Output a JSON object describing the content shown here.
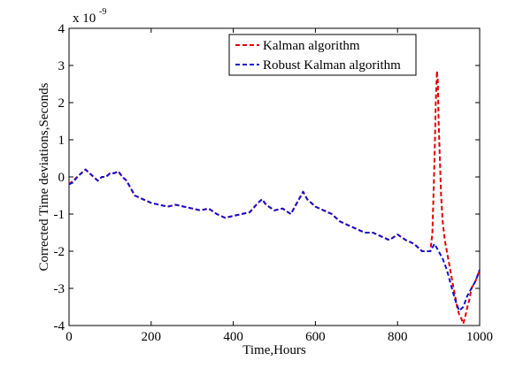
{
  "chart_data": {
    "type": "line",
    "xlabel": "Time,Hours",
    "ylabel": "Corrected Time deviations,Seconds",
    "y_multiplier_label": "x 10",
    "y_multiplier_exponent": "-9",
    "xlim": [
      0,
      1000
    ],
    "ylim": [
      -4,
      4
    ],
    "x_ticks": [
      0,
      200,
      400,
      600,
      800,
      1000
    ],
    "y_ticks": [
      -4,
      -3,
      -2,
      -1,
      0,
      1,
      2,
      3,
      4
    ],
    "x_tick_labels": [
      "0",
      "200",
      "400",
      "600",
      "800",
      "1000"
    ],
    "y_tick_labels": [
      "-4",
      "-3",
      "-2",
      "-1",
      "0",
      "1",
      "2",
      "3",
      "4"
    ],
    "grid": false,
    "legend_position": "top-right",
    "series": [
      {
        "name": "Kalman algorithm",
        "color": "#e00000",
        "line_style": "dashed",
        "x": [
          0,
          10,
          20,
          30,
          40,
          50,
          60,
          70,
          80,
          90,
          100,
          110,
          120,
          130,
          140,
          150,
          160,
          170,
          180,
          190,
          200,
          220,
          240,
          260,
          280,
          300,
          320,
          340,
          360,
          380,
          400,
          420,
          440,
          460,
          470,
          480,
          500,
          520,
          540,
          560,
          570,
          580,
          600,
          620,
          640,
          660,
          680,
          700,
          720,
          740,
          760,
          780,
          800,
          820,
          840,
          860,
          880,
          885,
          890,
          893,
          896,
          898,
          900,
          903,
          906,
          910,
          915,
          920,
          925,
          930,
          935,
          940,
          945,
          950,
          955,
          960,
          965,
          970,
          975,
          980,
          990,
          1000
        ],
        "y": [
          -0.2,
          -0.1,
          0.0,
          0.1,
          0.2,
          0.1,
          0.0,
          -0.1,
          0.0,
          0.0,
          0.1,
          0.1,
          0.15,
          0.0,
          -0.1,
          -0.3,
          -0.5,
          -0.55,
          -0.6,
          -0.65,
          -0.7,
          -0.75,
          -0.8,
          -0.75,
          -0.8,
          -0.85,
          -0.9,
          -0.85,
          -1.0,
          -1.1,
          -1.05,
          -1.0,
          -0.95,
          -0.7,
          -0.6,
          -0.75,
          -0.9,
          -0.85,
          -1.0,
          -0.6,
          -0.4,
          -0.6,
          -0.8,
          -0.9,
          -1.0,
          -1.2,
          -1.3,
          -1.4,
          -1.5,
          -1.5,
          -1.6,
          -1.7,
          -1.55,
          -1.7,
          -1.8,
          -2.0,
          -2.0,
          -1.5,
          0.5,
          2.0,
          2.85,
          2.6,
          1.5,
          0.5,
          -0.5,
          -1.2,
          -1.7,
          -2.0,
          -2.3,
          -2.6,
          -2.9,
          -3.2,
          -3.5,
          -3.7,
          -3.8,
          -3.95,
          -3.75,
          -3.5,
          -3.3,
          -3.0,
          -2.8,
          -2.5
        ]
      },
      {
        "name": "Robust Kalman algorithm",
        "color": "#1010d0",
        "line_style": "dashed",
        "x": [
          0,
          10,
          20,
          30,
          40,
          50,
          60,
          70,
          80,
          90,
          100,
          110,
          120,
          130,
          140,
          150,
          160,
          170,
          180,
          190,
          200,
          220,
          240,
          260,
          280,
          300,
          320,
          340,
          360,
          380,
          400,
          420,
          440,
          460,
          470,
          480,
          500,
          520,
          540,
          560,
          570,
          580,
          600,
          620,
          640,
          660,
          680,
          700,
          720,
          740,
          760,
          780,
          800,
          820,
          840,
          860,
          880,
          890,
          900,
          910,
          920,
          930,
          940,
          950,
          960,
          970,
          980,
          990,
          1000
        ],
        "y": [
          -0.2,
          -0.15,
          0.0,
          0.1,
          0.2,
          0.1,
          0.0,
          -0.1,
          0.0,
          0.0,
          0.1,
          0.1,
          0.15,
          0.0,
          -0.1,
          -0.3,
          -0.5,
          -0.55,
          -0.6,
          -0.65,
          -0.7,
          -0.75,
          -0.8,
          -0.75,
          -0.8,
          -0.85,
          -0.9,
          -0.85,
          -1.0,
          -1.1,
          -1.05,
          -1.0,
          -0.95,
          -0.7,
          -0.6,
          -0.75,
          -0.9,
          -0.85,
          -1.0,
          -0.6,
          -0.4,
          -0.6,
          -0.8,
          -0.9,
          -1.0,
          -1.2,
          -1.3,
          -1.4,
          -1.5,
          -1.5,
          -1.6,
          -1.7,
          -1.55,
          -1.7,
          -1.8,
          -2.0,
          -2.0,
          -1.8,
          -2.0,
          -2.2,
          -2.5,
          -2.9,
          -3.3,
          -3.6,
          -3.5,
          -3.2,
          -3.0,
          -2.8,
          -2.5
        ]
      }
    ]
  }
}
